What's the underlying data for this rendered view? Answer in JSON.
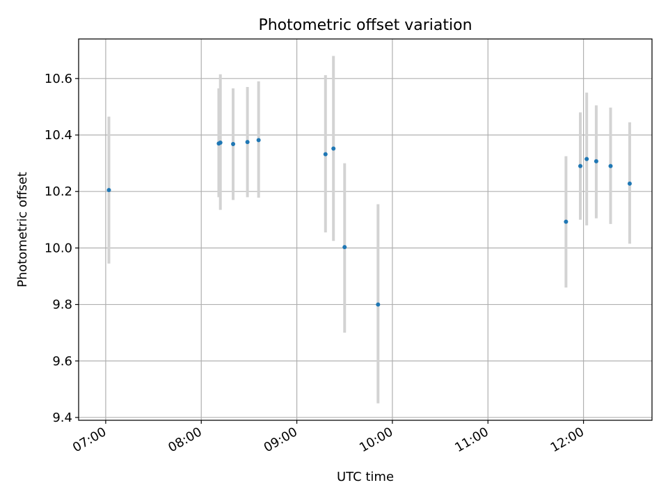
{
  "chart_data": {
    "type": "scatter",
    "title": "Photometric offset variation",
    "xlabel": "UTC time",
    "ylabel": "Photometric offset",
    "xlim": [
      "06:43",
      "12:43"
    ],
    "ylim": [
      9.39,
      10.74
    ],
    "xticks": [
      "07:00",
      "08:00",
      "09:00",
      "10:00",
      "11:00",
      "12:00"
    ],
    "yticks": [
      "9.4",
      "9.6",
      "9.8",
      "10.0",
      "10.2",
      "10.4",
      "10.6"
    ],
    "grid": true,
    "colors": {
      "points": "#1f77b4",
      "error_bars": "#d3d3d3",
      "grid": "#b0b0b0"
    },
    "points": [
      {
        "x": "07:02",
        "y": 10.205,
        "err_low": 9.945,
        "err_high": 10.465
      },
      {
        "x": "08:11",
        "y": 10.37,
        "err_low": 10.18,
        "err_high": 10.565
      },
      {
        "x": "08:12",
        "y": 10.373,
        "err_low": 10.135,
        "err_high": 10.615
      },
      {
        "x": "08:20",
        "y": 10.368,
        "err_low": 10.17,
        "err_high": 10.565
      },
      {
        "x": "08:29",
        "y": 10.375,
        "err_low": 10.18,
        "err_high": 10.57
      },
      {
        "x": "08:36",
        "y": 10.382,
        "err_low": 10.178,
        "err_high": 10.59
      },
      {
        "x": "09:18",
        "y": 10.332,
        "err_low": 10.055,
        "err_high": 10.612
      },
      {
        "x": "09:23",
        "y": 10.352,
        "err_low": 10.025,
        "err_high": 10.68
      },
      {
        "x": "09:30",
        "y": 10.003,
        "err_low": 9.7,
        "err_high": 10.3
      },
      {
        "x": "09:51",
        "y": 9.8,
        "err_low": 9.45,
        "err_high": 10.155
      },
      {
        "x": "11:49",
        "y": 10.093,
        "err_low": 9.86,
        "err_high": 10.325
      },
      {
        "x": "11:58",
        "y": 10.29,
        "err_low": 10.1,
        "err_high": 10.48
      },
      {
        "x": "12:02",
        "y": 10.315,
        "err_low": 10.08,
        "err_high": 10.55
      },
      {
        "x": "12:08",
        "y": 10.307,
        "err_low": 10.105,
        "err_high": 10.505
      },
      {
        "x": "12:17",
        "y": 10.29,
        "err_low": 10.085,
        "err_high": 10.497
      },
      {
        "x": "12:29",
        "y": 10.228,
        "err_low": 10.015,
        "err_high": 10.445
      }
    ]
  }
}
